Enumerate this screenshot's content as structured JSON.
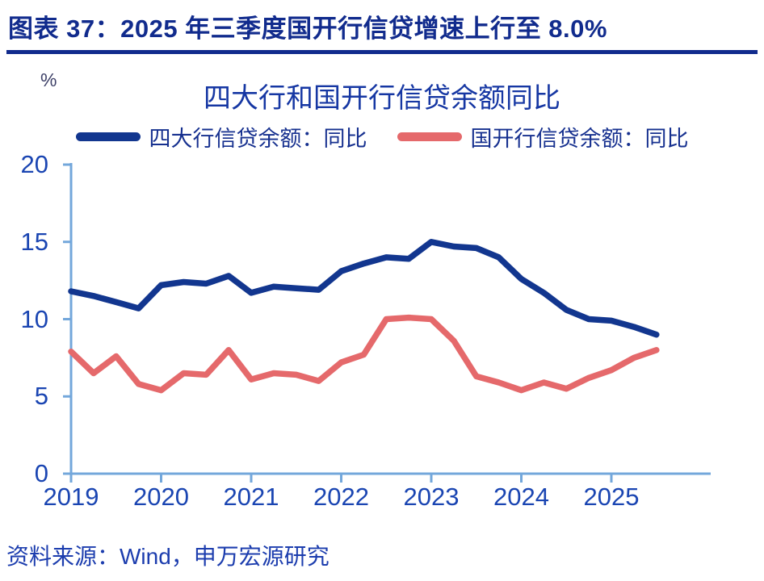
{
  "header": {
    "title": "图表 37：2025 年三季度国开行信贷增速上行至 8.0%"
  },
  "footer": {
    "source": "资料来源：Wind，申万宏源研究"
  },
  "colors": {
    "header_navy": "#112B8D",
    "chart_title_blue": "#1637A3",
    "tick_label_blue": "#1A45B2",
    "axis_light_blue": "#73A7DB",
    "line_blue": "#12368F",
    "line_red": "#E5696B",
    "footer_blue": "#1C3DAE"
  },
  "chart_data": {
    "type": "line",
    "title": "四大行和国开行信贷余额同比",
    "unit": "%",
    "grid": false,
    "legend_position": "top",
    "ylim": [
      0,
      20
    ],
    "y_ticks": [
      0,
      5,
      10,
      15,
      20
    ],
    "x_tick_labels": [
      "2019",
      "2020",
      "2021",
      "2022",
      "2023",
      "2024",
      "2025"
    ],
    "categories": [
      "2019Q1",
      "2019Q2",
      "2019Q3",
      "2019Q4",
      "2020Q1",
      "2020Q2",
      "2020Q3",
      "2020Q4",
      "2021Q1",
      "2021Q2",
      "2021Q3",
      "2021Q4",
      "2022Q1",
      "2022Q2",
      "2022Q3",
      "2022Q4",
      "2023Q1",
      "2023Q2",
      "2023Q3",
      "2023Q4",
      "2024Q1",
      "2024Q2",
      "2024Q3",
      "2024Q4",
      "2025Q1",
      "2025Q2",
      "2025Q3"
    ],
    "series": [
      {
        "name": "四大行信贷余额：同比",
        "color": "#12368F",
        "values": [
          11.8,
          11.5,
          11.1,
          10.7,
          12.2,
          12.4,
          12.3,
          12.8,
          11.7,
          12.1,
          12.0,
          11.9,
          13.1,
          13.6,
          14.0,
          13.9,
          15.0,
          14.7,
          14.6,
          14.0,
          12.6,
          11.7,
          10.6,
          10.0,
          9.9,
          9.5,
          9.0
        ]
      },
      {
        "name": "国开行信贷余额：同比",
        "color": "#E5696B",
        "values": [
          7.9,
          6.5,
          7.6,
          5.8,
          5.4,
          6.5,
          6.4,
          8.0,
          6.1,
          6.5,
          6.4,
          6.0,
          7.2,
          7.7,
          10.0,
          10.1,
          10.0,
          8.6,
          6.3,
          5.9,
          5.4,
          5.9,
          5.5,
          6.2,
          6.7,
          7.5,
          8.0
        ]
      }
    ]
  }
}
